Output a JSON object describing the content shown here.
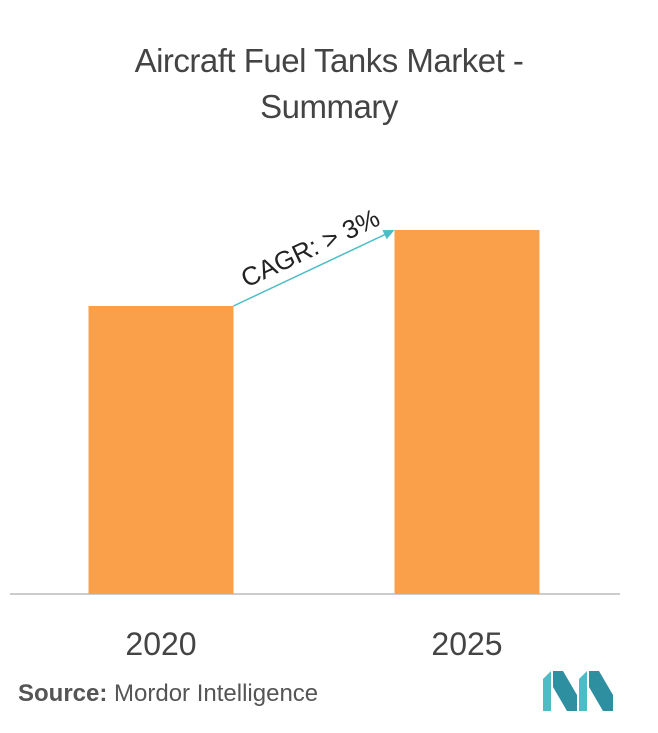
{
  "title_line1": "Aircraft Fuel Tanks Market -",
  "title_line2": "Summary",
  "source_label": "Source:",
  "source_text": "Mordor Intelligence",
  "annotation": "CAGR: > 3%",
  "colors": {
    "bar": "#FBA04A",
    "arrow": "#4ABDC6",
    "axis": "#BBBBBB",
    "logo": "#4ABDC6"
  },
  "chart_data": {
    "type": "bar",
    "categories": [
      "2020",
      "2025"
    ],
    "values": [
      72,
      91
    ],
    "ylim": [
      0,
      100
    ],
    "grid": false,
    "legend": "none",
    "annotation": "CAGR: > 3%"
  }
}
